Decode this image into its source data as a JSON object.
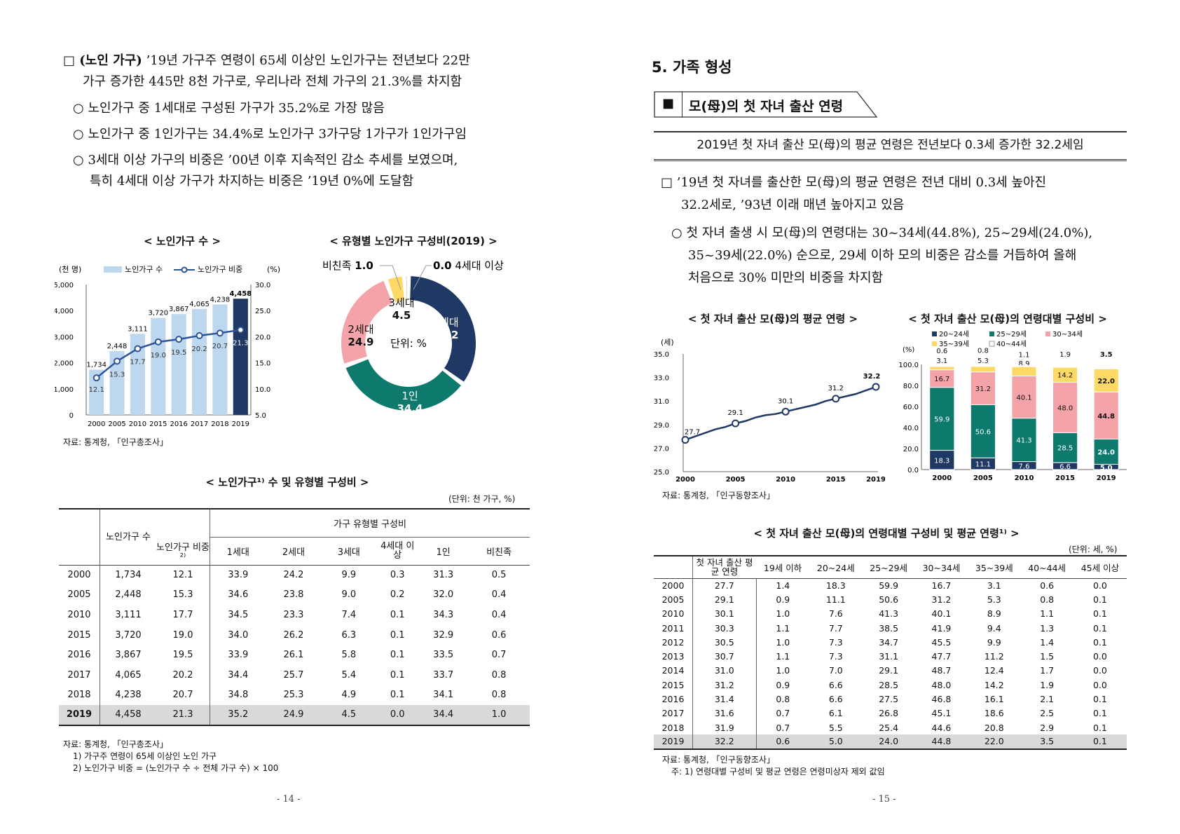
{
  "left": {
    "para1_head": "□ (노인 가구)",
    "para1_l1": "’19년 가구주 연령이 65세 이상인 노인가구는 전년보다 22만",
    "para1_l2": "가구 증가한 445만 8천 가구로, 우리나라 전체 가구의 21.3%를 차지함",
    "b1": "노인가구 중 1세대로 구성된 가구가 35.2%로 가장 많음",
    "b2": "노인가구 중 1인가구는 34.4%로 노인가구 3가구당 1가구가 1인가구임",
    "b3_l1": "3세대 이상 가구의 비중은 ’00년 이후 지속적인 감소 추세를 보였으며,",
    "b3_l2": "특히 4세대 이상 가구가 차지하는 비중은 ’19년 0%에 도달함",
    "bullet_mark": "○",
    "source_charts": "자료: 통계청, 「인구총조사」",
    "table_title": "< 노인가구¹⁾ 수 및 유형별 구성비 >",
    "table_unit": "(단위: 천 가구, %)",
    "table_head": {
      "count": "노인가구 수",
      "ratio": "노인가구 비중²⁾",
      "group": "가구 유형별 구성비",
      "cols": [
        "1세대",
        "2세대",
        "3세대",
        "4세대 이상",
        "1인",
        "비친족"
      ]
    },
    "table_rows": [
      [
        "2000",
        "1,734",
        "12.1",
        "33.9",
        "24.2",
        "9.9",
        "0.3",
        "31.3",
        "0.5"
      ],
      [
        "2005",
        "2,448",
        "15.3",
        "34.6",
        "23.8",
        "9.0",
        "0.2",
        "32.0",
        "0.4"
      ],
      [
        "2010",
        "3,111",
        "17.7",
        "34.5",
        "23.3",
        "7.4",
        "0.1",
        "34.3",
        "0.4"
      ],
      [
        "2015",
        "3,720",
        "19.0",
        "34.0",
        "26.2",
        "6.3",
        "0.1",
        "32.9",
        "0.6"
      ],
      [
        "2016",
        "3,867",
        "19.5",
        "33.9",
        "26.1",
        "5.8",
        "0.1",
        "33.5",
        "0.7"
      ],
      [
        "2017",
        "4,065",
        "20.2",
        "34.4",
        "25.7",
        "5.4",
        "0.1",
        "33.7",
        "0.8"
      ],
      [
        "2018",
        "4,238",
        "20.7",
        "34.8",
        "25.3",
        "4.9",
        "0.1",
        "34.1",
        "0.8"
      ],
      [
        "2019",
        "4,458",
        "21.3",
        "35.2",
        "24.9",
        "4.5",
        "0.0",
        "34.4",
        "1.0"
      ]
    ],
    "table_src1": "자료: 통계청, 「인구총조사」",
    "table_src2": "1) 가구주 연령이 65세 이상인 노인 가구",
    "table_src3": "2) 노인가구 비중 = (노인가구 수 ÷ 전체 가구 수) × 100",
    "page": "- 14 -"
  },
  "right": {
    "section": "5. 가족 형성",
    "box_mark": "■",
    "box_title": "모(母)의 첫 자녀 출산 연령",
    "summary": "2019년 첫 자녀 출산 모(母)의 평균 연령은 전년보다 0.3세 증가한 32.2세임",
    "p1_l1": "□ ’19년 첫 자녀를 출산한 모(母)의 평균 연령은 전년 대비 0.3세 높아진",
    "p1_l2": "32.2세로, ’93년 이래 매년 높아지고 있음",
    "b1_l1": "첫 자녀 출생 시 모(母)의 연령대는 30~34세(44.8%), 25~29세(24.0%),",
    "b1_l2": "35~39세(22.0%) 순으로, 29세 이하 모의 비중은 감소를 거듭하여 올해",
    "b1_l3": "처음으로 30% 미만의 비중을 차지함",
    "bullet_mark": "○",
    "source_charts": "자료: 통계청, 「인구동향조사」",
    "table_title": "< 첫 자녀 출산 모(母)의 연령대별 구성비 및 평균 연령¹⁾ >",
    "table_unit": "(단위: 세, %)",
    "table_head": [
      "첫 자녀 출산 평균 연령",
      "19세 이하",
      "20~24세",
      "25~29세",
      "30~34세",
      "35~39세",
      "40~44세",
      "45세 이상"
    ],
    "table_rows": [
      [
        "2000",
        "27.7",
        "1.4",
        "18.3",
        "59.9",
        "16.7",
        "3.1",
        "0.6",
        "0.0"
      ],
      [
        "2005",
        "29.1",
        "0.9",
        "11.1",
        "50.6",
        "31.2",
        "5.3",
        "0.8",
        "0.1"
      ],
      [
        "2010",
        "30.1",
        "1.0",
        "7.6",
        "41.3",
        "40.1",
        "8.9",
        "1.1",
        "0.1"
      ],
      [
        "2011",
        "30.3",
        "1.1",
        "7.7",
        "38.5",
        "41.9",
        "9.4",
        "1.3",
        "0.1"
      ],
      [
        "2012",
        "30.5",
        "1.0",
        "7.3",
        "34.7",
        "45.5",
        "9.9",
        "1.4",
        "0.1"
      ],
      [
        "2013",
        "30.7",
        "1.1",
        "7.3",
        "31.1",
        "47.7",
        "11.2",
        "1.5",
        "0.0"
      ],
      [
        "2014",
        "31.0",
        "1.0",
        "7.0",
        "29.1",
        "48.7",
        "12.4",
        "1.7",
        "0.0"
      ],
      [
        "2015",
        "31.2",
        "0.9",
        "6.6",
        "28.5",
        "48.0",
        "14.2",
        "1.9",
        "0.0"
      ],
      [
        "2016",
        "31.4",
        "0.8",
        "6.6",
        "27.5",
        "46.8",
        "16.1",
        "2.1",
        "0.1"
      ],
      [
        "2017",
        "31.6",
        "0.7",
        "6.1",
        "26.8",
        "45.1",
        "18.6",
        "2.5",
        "0.1"
      ],
      [
        "2018",
        "31.9",
        "0.7",
        "5.5",
        "25.4",
        "44.6",
        "20.8",
        "2.9",
        "0.1"
      ],
      [
        "2019",
        "32.2",
        "0.6",
        "5.0",
        "24.0",
        "44.8",
        "22.0",
        "3.5",
        "0.1"
      ]
    ],
    "table_src1": "자료: 통계청, 「인구동향조사」",
    "table_src2": "주: 1) 연령대별 구성비 및 평균 연령은 연령미상자 제외 값임",
    "page": "- 15 -"
  },
  "chart_data": [
    {
      "type": "bar",
      "title": "< 노인가구 수 >",
      "ylabel": "(천 명)",
      "y2label": "(%)",
      "categories": [
        "2000",
        "2005",
        "2010",
        "2015",
        "2016",
        "2017",
        "2018",
        "2019"
      ],
      "ylim": [
        0,
        5000
      ],
      "yticks": [
        "0",
        "1,000",
        "2,000",
        "3,000",
        "4,000",
        "5,000"
      ],
      "y2lim": [
        5.0,
        30.0
      ],
      "y2ticks": [
        "5.0",
        "10.0",
        "15.0",
        "20.0",
        "25.0",
        "30.0"
      ],
      "series": [
        {
          "name": "노인가구 수",
          "type": "bar",
          "values": [
            1734,
            2448,
            3111,
            3720,
            3867,
            4065,
            4238,
            4458
          ],
          "labels": [
            "1,734",
            "2,448",
            "3,111",
            "3,720",
            "3,867",
            "4,065",
            "4,238",
            "4,458"
          ],
          "color": "#bdd7ee",
          "highlight_color": "#1f3864"
        },
        {
          "name": "노인가구 비중",
          "type": "line",
          "axis": "right",
          "values": [
            12.1,
            15.3,
            17.7,
            19.0,
            19.5,
            20.2,
            20.7,
            21.3
          ],
          "labels": [
            "12.1",
            "15.3",
            "17.7",
            "19.0",
            "19.5",
            "20.2",
            "20.7",
            "21.3"
          ],
          "color": "#2e5597"
        }
      ],
      "legend": "top"
    },
    {
      "type": "pie",
      "title": "< 유형별 노인가구 구성비(2019) >",
      "center_label": "단위: %",
      "slices": [
        {
          "name": "1세대",
          "value": 35.2,
          "label": "35.2",
          "color": "#1f3864"
        },
        {
          "name": "1인",
          "value": 34.4,
          "label": "34.4",
          "color": "#0e7a6e"
        },
        {
          "name": "2세대",
          "value": 24.9,
          "label": "24.9",
          "color": "#f4a3a8"
        },
        {
          "name": "3세대",
          "value": 4.5,
          "label": "4.5",
          "color": "#ffd966"
        },
        {
          "name": "비친족",
          "value": 1.0,
          "label": "1.0",
          "color": "#bfbfbf"
        },
        {
          "name": "4세대 이상",
          "value": 0.0,
          "label": "0.0",
          "color": "#7f7f7f"
        }
      ]
    },
    {
      "type": "line",
      "title": "< 첫 자녀 출산 모(母)의 평균 연령 >",
      "ylabel": "(세)",
      "x": [
        "2000",
        "2005",
        "2010",
        "2015",
        "2019"
      ],
      "x_years": [
        2000,
        2001,
        2002,
        2003,
        2004,
        2005,
        2006,
        2007,
        2008,
        2009,
        2010,
        2011,
        2012,
        2013,
        2014,
        2015,
        2016,
        2017,
        2018,
        2019
      ],
      "values_all": [
        27.7,
        28.0,
        28.3,
        28.6,
        28.8,
        29.1,
        29.3,
        29.6,
        29.8,
        29.9,
        30.1,
        30.3,
        30.5,
        30.7,
        31.0,
        31.2,
        31.4,
        31.6,
        31.9,
        32.2
      ],
      "marked": {
        "2000": "27.7",
        "2005": "29.1",
        "2010": "30.1",
        "2015": "31.2",
        "2019": "32.2"
      },
      "ylim": [
        25.0,
        35.0
      ],
      "yticks": [
        "25.0",
        "27.0",
        "29.0",
        "31.0",
        "33.0",
        "35.0"
      ],
      "color": "#1f3864"
    },
    {
      "type": "bar",
      "stacked": true,
      "title": "< 첫 자녀 출산 모(母)의 연령대별 구성비 >",
      "ylabel": "(%)",
      "categories": [
        "2000",
        "2005",
        "2010",
        "2015",
        "2019"
      ],
      "ylim": [
        0,
        100
      ],
      "yticks": [
        "0.0",
        "20.0",
        "40.0",
        "60.0",
        "80.0",
        "100.0"
      ],
      "series": [
        {
          "name": "20~24세",
          "values": [
            18.3,
            11.1,
            7.6,
            6.6,
            5.0
          ],
          "labels": [
            "18.3",
            "11.1",
            "7.6",
            "6.6",
            "5.0"
          ],
          "color": "#1f3864"
        },
        {
          "name": "25~29세",
          "values": [
            59.9,
            50.6,
            41.3,
            28.5,
            24.0
          ],
          "labels": [
            "59.9",
            "50.6",
            "41.3",
            "28.5",
            "24.0"
          ],
          "color": "#0e7a6e"
        },
        {
          "name": "30~34세",
          "values": [
            16.7,
            31.2,
            40.1,
            48.0,
            44.8
          ],
          "labels": [
            "16.7",
            "31.2",
            "40.1",
            "48.0",
            "44.8"
          ],
          "color": "#f4a3a8"
        },
        {
          "name": "35~39세",
          "values": [
            3.1,
            5.3,
            8.9,
            14.2,
            22.0
          ],
          "labels": [
            "3.1",
            "5.3",
            "8.9",
            "14.2",
            "22.0"
          ],
          "color": "#ffd966"
        },
        {
          "name": "40~44세",
          "values": [
            0.6,
            0.8,
            1.1,
            1.9,
            3.5
          ],
          "labels": [
            "0.6",
            "0.8",
            "1.1",
            "1.9",
            "3.5"
          ],
          "color": "#ffffff"
        }
      ],
      "legend": "top"
    }
  ]
}
